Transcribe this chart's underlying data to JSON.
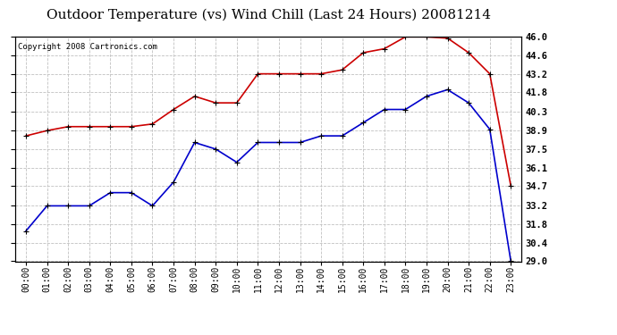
{
  "title": "Outdoor Temperature (vs) Wind Chill (Last 24 Hours) 20081214",
  "copyright": "Copyright 2008 Cartronics.com",
  "x_labels": [
    "00:00",
    "01:00",
    "02:00",
    "03:00",
    "04:00",
    "05:00",
    "06:00",
    "07:00",
    "08:00",
    "09:00",
    "10:00",
    "11:00",
    "12:00",
    "13:00",
    "14:00",
    "15:00",
    "16:00",
    "17:00",
    "18:00",
    "19:00",
    "20:00",
    "21:00",
    "22:00",
    "23:00"
  ],
  "red_data": [
    38.5,
    38.9,
    39.2,
    39.2,
    39.2,
    39.2,
    39.4,
    40.5,
    41.5,
    41.0,
    41.0,
    43.2,
    43.2,
    43.2,
    43.2,
    43.5,
    44.8,
    45.1,
    46.0,
    46.0,
    45.9,
    44.8,
    43.2,
    34.7
  ],
  "blue_data": [
    31.3,
    33.2,
    33.2,
    33.2,
    34.2,
    34.2,
    33.2,
    35.0,
    38.0,
    37.5,
    36.5,
    38.0,
    38.0,
    38.0,
    38.5,
    38.5,
    39.5,
    40.5,
    40.5,
    41.5,
    42.0,
    41.0,
    39.0,
    29.0
  ],
  "ylim": [
    29.0,
    46.0
  ],
  "ytick_values": [
    29.0,
    30.4,
    31.8,
    33.2,
    34.7,
    36.1,
    37.5,
    38.9,
    40.3,
    41.8,
    43.2,
    44.6,
    46.0
  ],
  "ytick_labels": [
    "29.0",
    "30.4",
    "31.8",
    "33.2",
    "34.7",
    "36.1",
    "37.5",
    "38.9",
    "40.3",
    "41.8",
    "43.2",
    "44.6",
    "46.0"
  ],
  "red_color": "#cc0000",
  "blue_color": "#0000cc",
  "bg_color": "#ffffff",
  "grid_color": "#c0c0c0",
  "title_fontsize": 11,
  "copyright_fontsize": 6.5,
  "tick_fontsize": 7,
  "ytick_fontsize": 7.5
}
